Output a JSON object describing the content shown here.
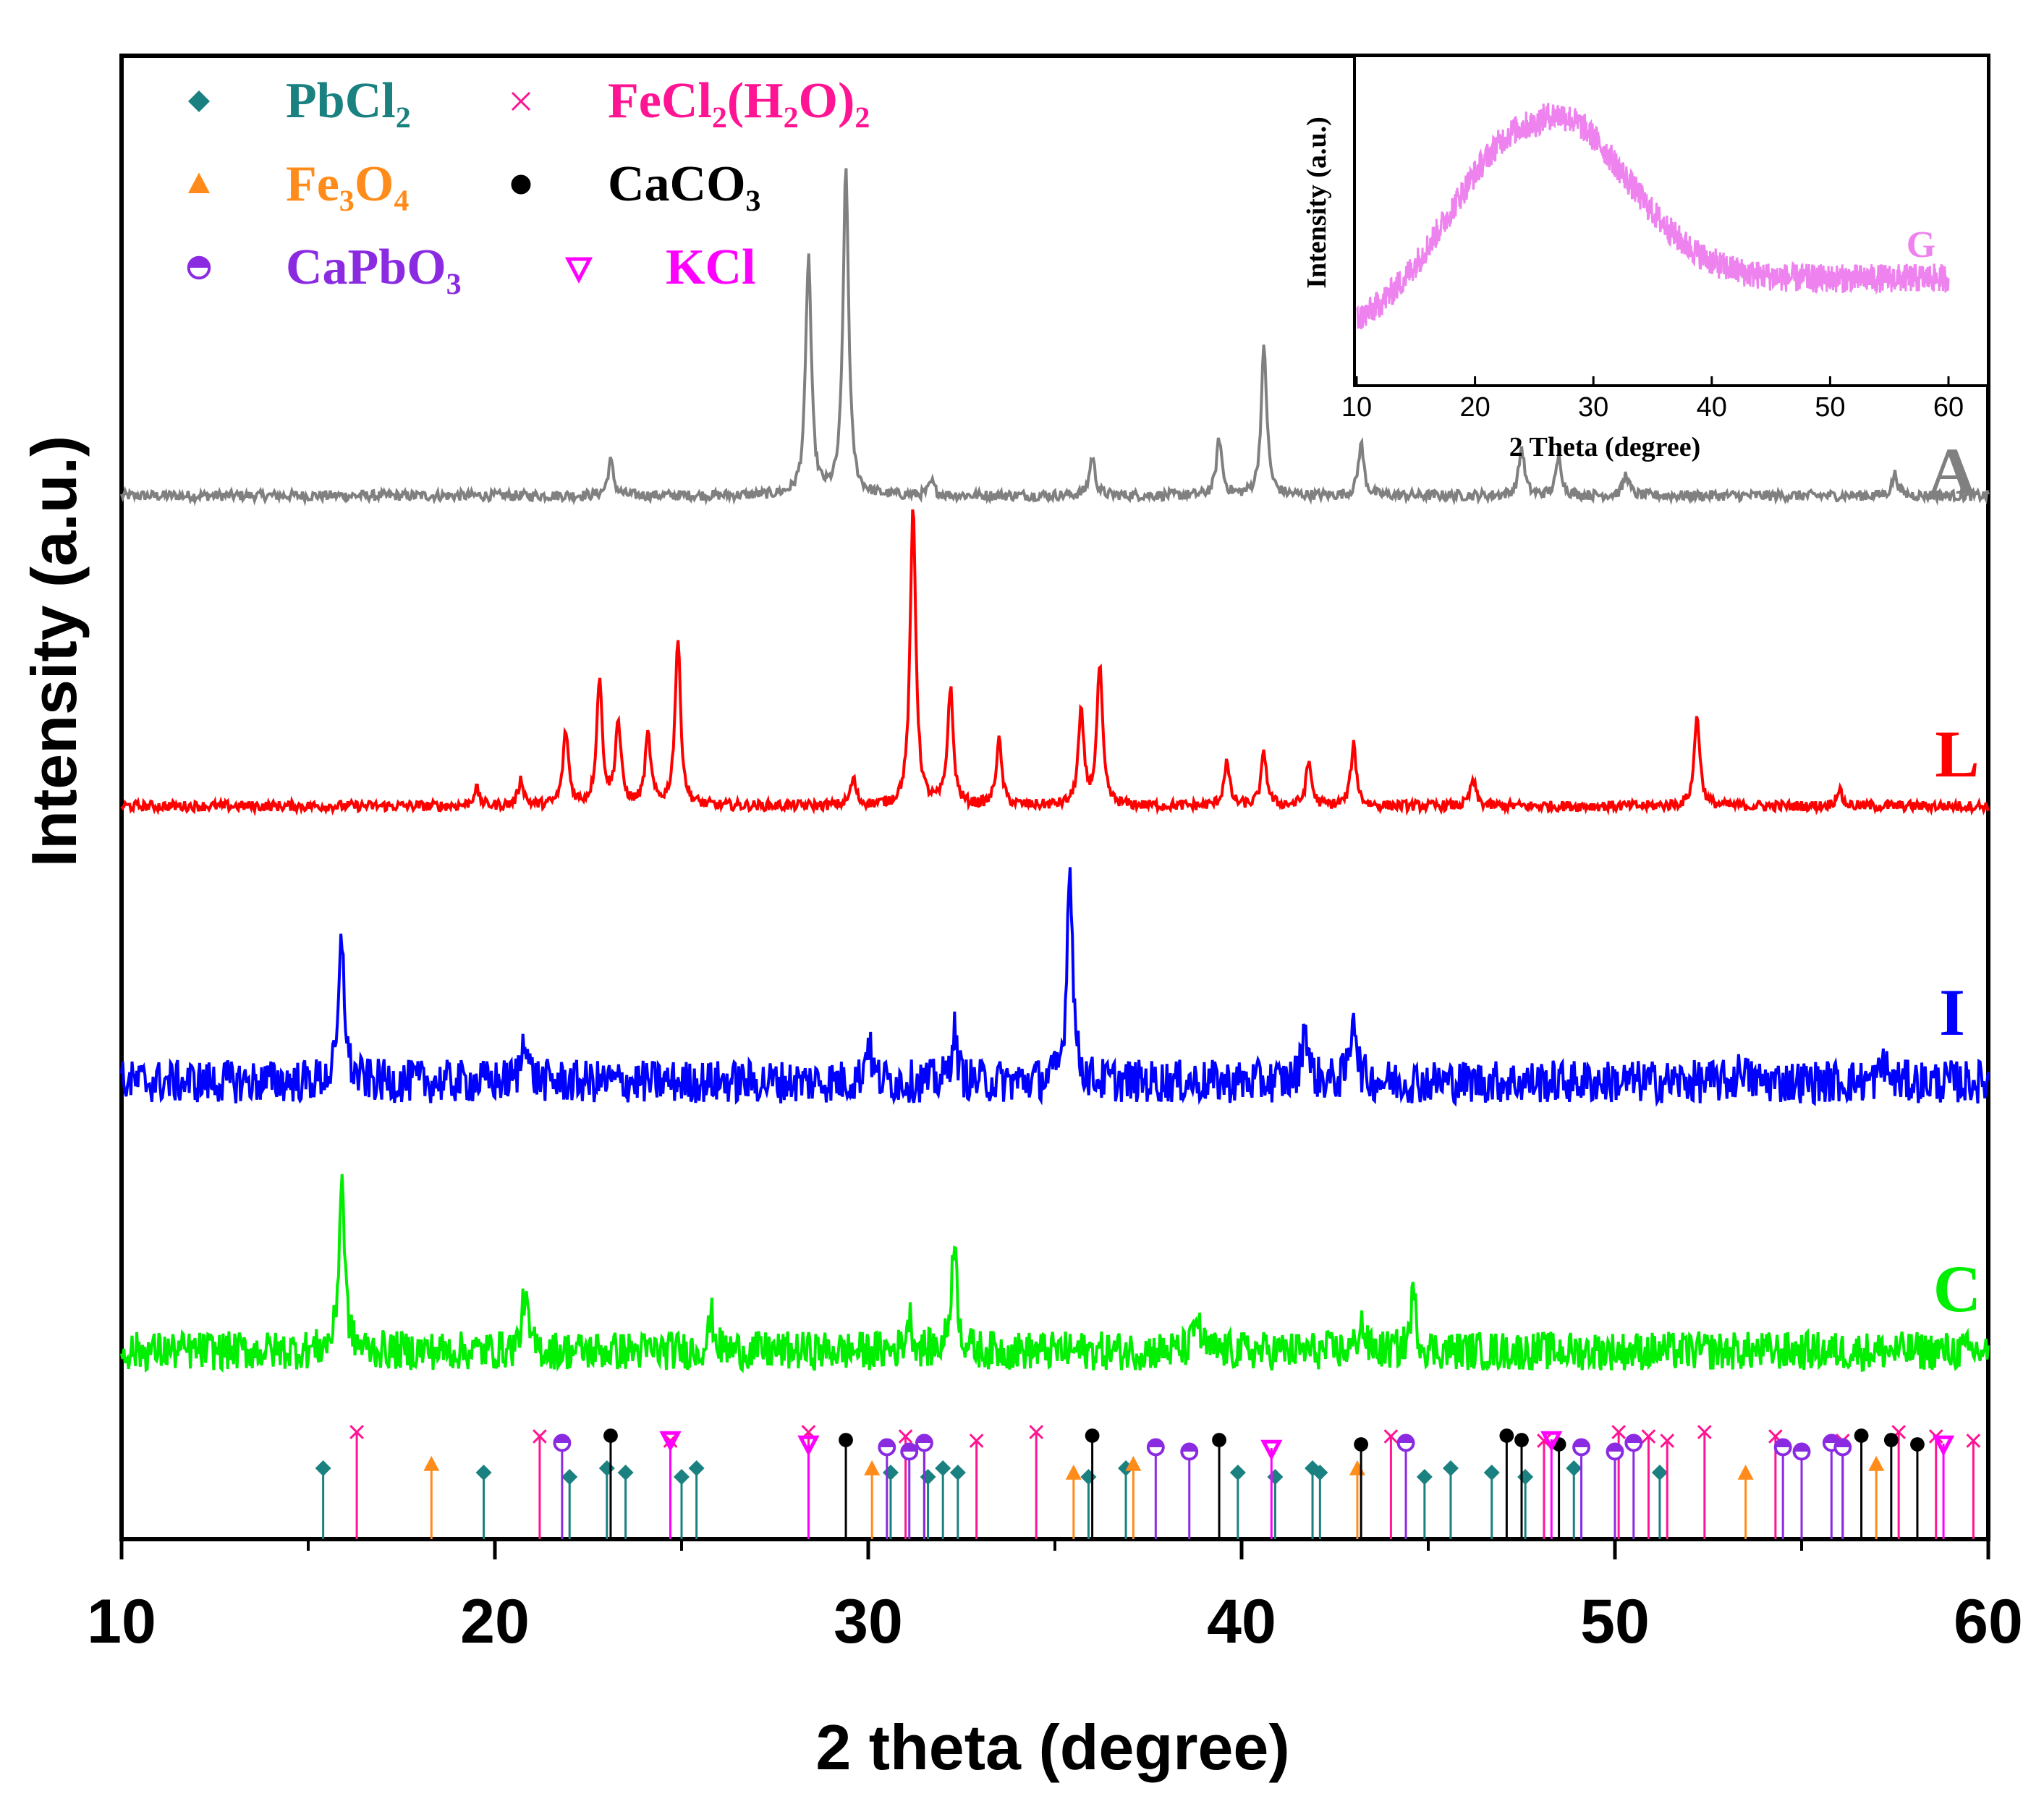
{
  "chart_data": {
    "type": "line",
    "title": "",
    "xlabel": "2 theta (degree)",
    "ylabel": "Intensity (a.u.)",
    "xlim": [
      10,
      60
    ],
    "xticks": [
      10,
      20,
      30,
      40,
      50,
      60
    ],
    "yticks_shown": false,
    "series": [
      {
        "name": "A",
        "color": "#808080",
        "baseline": 0.05,
        "noise": 0.012,
        "peaks": [
          [
            23.1,
            0.08
          ],
          [
            28.4,
            0.55
          ],
          [
            29.4,
            0.75
          ],
          [
            31.7,
            0.03
          ],
          [
            36.0,
            0.09
          ],
          [
            39.4,
            0.13
          ],
          [
            40.6,
            0.34
          ],
          [
            43.2,
            0.12
          ],
          [
            47.5,
            0.11
          ],
          [
            48.5,
            0.09
          ],
          [
            50.3,
            0.05
          ],
          [
            57.5,
            0.05
          ]
        ]
      },
      {
        "name": "L",
        "color": "#ff0000",
        "baseline": 0.035,
        "noise": 0.012,
        "peaks": [
          [
            19.5,
            0.04
          ],
          [
            20.7,
            0.06
          ],
          [
            21.9,
            0.17
          ],
          [
            22.8,
            0.29
          ],
          [
            23.3,
            0.19
          ],
          [
            24.1,
            0.16
          ],
          [
            24.9,
            0.38
          ],
          [
            29.6,
            0.06
          ],
          [
            31.2,
            0.69
          ],
          [
            32.2,
            0.27
          ],
          [
            33.5,
            0.15
          ],
          [
            35.7,
            0.21
          ],
          [
            36.2,
            0.32
          ],
          [
            39.6,
            0.1
          ],
          [
            40.6,
            0.12
          ],
          [
            41.8,
            0.1
          ],
          [
            43.0,
            0.14
          ],
          [
            46.2,
            0.06
          ],
          [
            52.2,
            0.21
          ],
          [
            56.0,
            0.04
          ]
        ]
      },
      {
        "name": "I",
        "color": "#0000ff",
        "baseline": 0.1,
        "noise": 0.05,
        "peaks": [
          [
            15.9,
            0.33
          ],
          [
            20.8,
            0.12
          ],
          [
            30.0,
            0.1
          ],
          [
            32.3,
            0.12
          ],
          [
            35.4,
            0.51
          ],
          [
            41.7,
            0.14
          ],
          [
            43.0,
            0.17
          ],
          [
            53.4,
            0.04
          ],
          [
            57.2,
            0.05
          ]
        ]
      },
      {
        "name": "C",
        "color": "#00ee00",
        "baseline": 0.08,
        "noise": 0.045,
        "peaks": [
          [
            15.9,
            0.4
          ],
          [
            20.8,
            0.13
          ],
          [
            25.8,
            0.08
          ],
          [
            31.1,
            0.08
          ],
          [
            32.3,
            0.26
          ],
          [
            38.8,
            0.08
          ],
          [
            43.2,
            0.07
          ],
          [
            44.6,
            0.13
          ]
        ]
      }
    ],
    "reference_phases": [
      {
        "name": "PbCl2",
        "label": "PbCl₂",
        "marker": "diamond",
        "color": "#1a8080",
        "positions": [
          15.4,
          19.7,
          22.0,
          23.0,
          23.5,
          25.0,
          25.4,
          30.6,
          31.6,
          32.0,
          32.4,
          35.9,
          36.9,
          39.9,
          40.9,
          41.9,
          42.1,
          44.9,
          45.6,
          46.7,
          47.6,
          48.9,
          51.2
        ]
      },
      {
        "name": "FeCl2(H2O)2",
        "label": "FeCl₂(H₂O)₂",
        "marker": "x",
        "color": "#ff1493",
        "positions": [
          16.3,
          21.2,
          24.7,
          28.4,
          31.0,
          32.9,
          34.5,
          44.0,
          48.1,
          50.1,
          50.9,
          51.4,
          52.4,
          54.3,
          56.1,
          57.6,
          58.6,
          59.6
        ]
      },
      {
        "name": "Fe3O4",
        "label": "Fe₃O₄",
        "marker": "triangle",
        "color": "#ff8c1a",
        "positions": [
          18.3,
          30.1,
          35.5,
          37.1,
          43.1,
          53.5,
          57.0
        ]
      },
      {
        "name": "CaCO3",
        "label": "CaCO₃",
        "marker": "circle",
        "color": "#000000",
        "positions": [
          23.1,
          29.4,
          31.5,
          36.0,
          39.4,
          43.2,
          47.1,
          47.5,
          48.5,
          56.6,
          57.4,
          58.1
        ]
      },
      {
        "name": "CaPbO3",
        "label": "CaPbO₃",
        "marker": "halfcircle",
        "color": "#8a2be2",
        "positions": [
          21.8,
          30.5,
          31.1,
          31.5,
          37.7,
          38.6,
          44.4,
          49.1,
          50.0,
          50.5,
          54.5,
          55.0,
          55.8,
          56.1
        ]
      },
      {
        "name": "KCl",
        "label": "KCl",
        "marker": "down-triangle",
        "color": "#ff00ff",
        "positions": [
          24.7,
          28.4,
          40.8,
          48.3,
          58.8
        ]
      }
    ],
    "inset": {
      "series_name": "G",
      "color": "#ee82ee",
      "xlabel": "2 Theta (degree)",
      "ylabel": "Intensity (a.u.)",
      "xlim": [
        10,
        60
      ],
      "xticks": [
        10,
        20,
        30,
        40,
        50,
        60
      ],
      "hump_center": 25,
      "hump_width": 7,
      "hump_height": 0.75,
      "baseline": 0.12,
      "tail_level": 0.22,
      "noise": 0.05
    },
    "legend_position": "top-left"
  }
}
